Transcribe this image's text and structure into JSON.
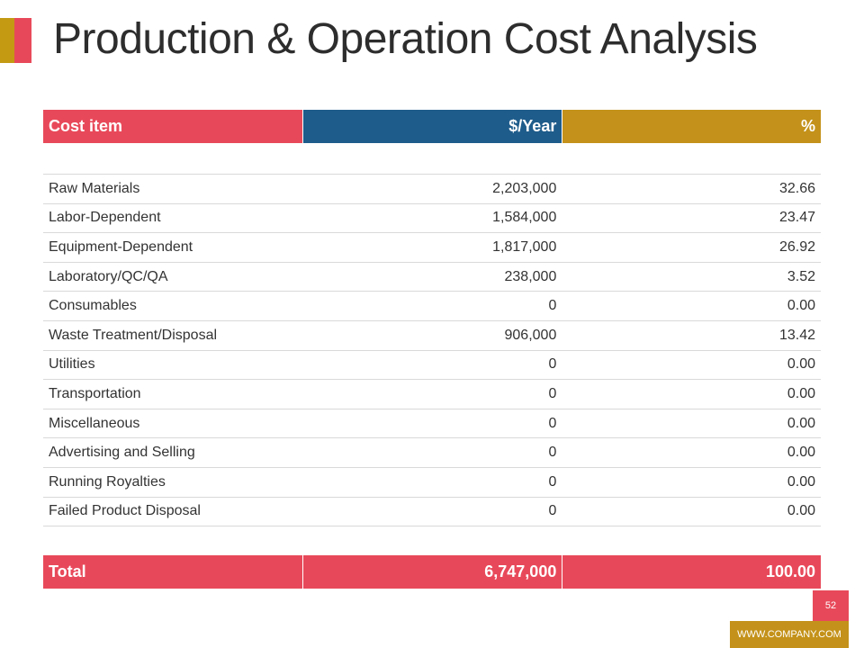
{
  "title": "Production & Operation Cost Analysis",
  "colors": {
    "red": "#e8495a",
    "blue": "#1e5c8b",
    "gold": "#c4921a"
  },
  "table": {
    "headers": [
      "Cost item",
      "$/Year",
      "%"
    ],
    "rows": [
      [
        "Raw Materials",
        "2,203,000",
        "32.66"
      ],
      [
        "Labor-Dependent",
        "1,584,000",
        "23.47"
      ],
      [
        "Equipment-Dependent",
        "1,817,000",
        "26.92"
      ],
      [
        "Laboratory/QC/QA",
        "238,000",
        "3.52"
      ],
      [
        "Consumables",
        "0",
        "0.00"
      ],
      [
        "Waste Treatment/Disposal",
        "906,000",
        "13.42"
      ],
      [
        "Utilities",
        "0",
        "0.00"
      ],
      [
        "Transportation",
        "0",
        "0.00"
      ],
      [
        "Miscellaneous",
        "0",
        "0.00"
      ],
      [
        "Advertising and Selling",
        "0",
        "0.00"
      ],
      [
        "Running Royalties",
        "0",
        "0.00"
      ],
      [
        "Failed Product Disposal",
        "0",
        "0.00"
      ]
    ],
    "total": [
      "Total",
      "6,747,000",
      "100.00"
    ]
  },
  "footer": {
    "page_number": "52",
    "website": "WWW.COMPANY.COM"
  }
}
